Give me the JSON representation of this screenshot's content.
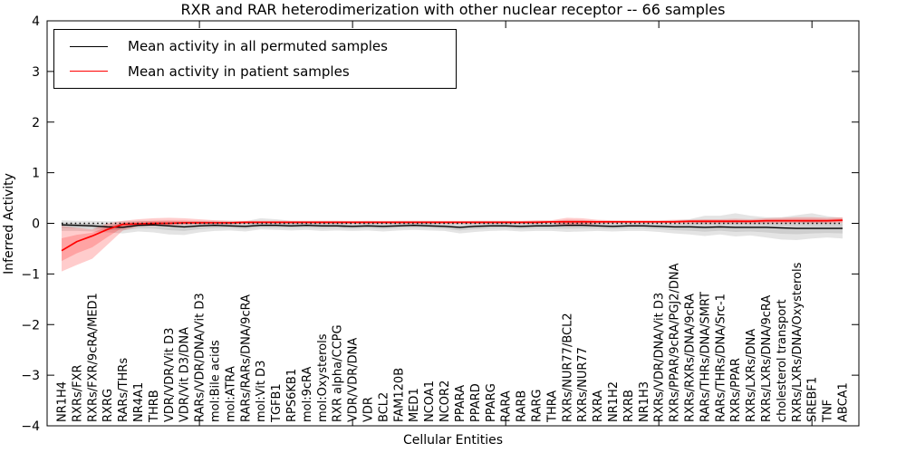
{
  "figure": {
    "title": "RXR and RAR heterodimerization with other nuclear receptor -- 66 samples",
    "xlabel": "Cellular Entities",
    "ylabel": "Inferred Activity"
  },
  "legend": {
    "entries": [
      {
        "label": "Mean activity in all permuted samples",
        "color": "#000000"
      },
      {
        "label": "Mean activity in patient samples",
        "color": "#ff0000"
      }
    ]
  },
  "chart_data": {
    "type": "line",
    "title": "RXR and RAR heterodimerization with other nuclear receptor -- 66 samples",
    "xlabel": "Cellular Entities",
    "ylabel": "Inferred Activity",
    "ylim": [
      -4,
      4
    ],
    "yticks": [
      4,
      3,
      2,
      1,
      0,
      -1,
      -2,
      -3,
      -4
    ],
    "x_major_tick_every": 10,
    "grid": false,
    "legend_position": "upper left",
    "zero_reference_line": {
      "y": 0,
      "style": "dotted",
      "color": "#000000"
    },
    "categories": [
      "NR1H4",
      "RXRs/FXR",
      "RXRs/FXR/9cRA/MED1",
      "RXRG",
      "RARs/THRs",
      "NR4A1",
      "THRB",
      "VDR/VDR/Vit D3",
      "VDR/Vit D3/DNA",
      "RARs/VDR/DNA/Vit D3",
      "mol:Bile acids",
      "mol:ATRA",
      "RARs/RARs/DNA/9cRA",
      "mol:Vit D3",
      "TGFB1",
      "RPS6KB1",
      "mol:9cRA",
      "mol:Oxysterols",
      "RXR alpha/CCPG",
      "VDR/VDR/DNA",
      "VDR",
      "BCL2",
      "FAM120B",
      "MED1",
      "NCOA1",
      "NCOR2",
      "PPARA",
      "PPARD",
      "PPARG",
      "RARA",
      "RARB",
      "RARG",
      "THRA",
      "RXRs/NUR77/BCL2",
      "RXRs/NUR77",
      "RXRA",
      "NR1H2",
      "RXRB",
      "NR1H3",
      "RXRs/VDR/DNA/Vit D3",
      "RXRs/PPAR/9cRA/PGJ2/DNA",
      "RXRs/RXRs/DNA/9cRA",
      "RARs/THRs/DNA/SMRT",
      "RARs/THRs/DNA/Src-1",
      "RXRs/PPAR",
      "RXRs/LXRs/DNA",
      "RXRs/LXRs/DNA/9cRA",
      "cholesterol transport",
      "RXRs/LXRs/DNA/Oxysterols",
      "SREBF1",
      "TNF",
      "ABCA1"
    ],
    "series": [
      {
        "name": "Mean activity in all permuted samples",
        "color": "#000000",
        "band_color": "rgba(130,130,130,0.22)",
        "values": [
          -0.03,
          -0.04,
          -0.05,
          -0.07,
          -0.08,
          -0.04,
          -0.03,
          -0.05,
          -0.07,
          -0.05,
          -0.04,
          -0.05,
          -0.06,
          -0.04,
          -0.04,
          -0.05,
          -0.04,
          -0.05,
          -0.05,
          -0.06,
          -0.05,
          -0.06,
          -0.05,
          -0.04,
          -0.05,
          -0.06,
          -0.08,
          -0.06,
          -0.05,
          -0.05,
          -0.06,
          -0.05,
          -0.05,
          -0.04,
          -0.04,
          -0.05,
          -0.06,
          -0.05,
          -0.05,
          -0.06,
          -0.07,
          -0.07,
          -0.08,
          -0.07,
          -0.08,
          -0.08,
          -0.08,
          -0.09,
          -0.1,
          -0.1,
          -0.1,
          -0.1
        ],
        "band_lo": [
          -0.15,
          -0.15,
          -0.16,
          -0.18,
          -0.2,
          -0.16,
          -0.18,
          -0.22,
          -0.23,
          -0.18,
          -0.15,
          -0.14,
          -0.16,
          -0.12,
          -0.13,
          -0.14,
          -0.13,
          -0.15,
          -0.14,
          -0.15,
          -0.14,
          -0.16,
          -0.14,
          -0.13,
          -0.14,
          -0.15,
          -0.2,
          -0.17,
          -0.15,
          -0.14,
          -0.16,
          -0.15,
          -0.15,
          -0.17,
          -0.16,
          -0.15,
          -0.16,
          -0.15,
          -0.15,
          -0.17,
          -0.2,
          -0.22,
          -0.25,
          -0.22,
          -0.26,
          -0.24,
          -0.28,
          -0.32,
          -0.33,
          -0.3,
          -0.28,
          -0.3
        ],
        "band_hi": [
          0.06,
          0.05,
          0.05,
          0.04,
          0.04,
          0.05,
          0.05,
          0.05,
          0.04,
          0.05,
          0.05,
          0.05,
          0.04,
          0.1,
          0.08,
          0.05,
          0.05,
          0.05,
          0.05,
          0.04,
          0.05,
          0.04,
          0.05,
          0.05,
          0.05,
          0.04,
          0.04,
          0.05,
          0.05,
          0.05,
          0.04,
          0.05,
          0.05,
          0.06,
          0.06,
          0.05,
          0.05,
          0.05,
          0.05,
          0.05,
          0.06,
          0.08,
          0.15,
          0.15,
          0.2,
          0.15,
          0.12,
          0.12,
          0.16,
          0.2,
          0.14,
          0.11
        ]
      },
      {
        "name": "Mean activity in patient samples",
        "color": "#ff0000",
        "band_color": "rgba(255,0,0,0.20)",
        "values": [
          -0.54,
          -0.36,
          -0.25,
          -0.12,
          -0.02,
          -0.01,
          0.0,
          0.0,
          0.01,
          0.01,
          0.01,
          0.01,
          0.02,
          0.02,
          0.02,
          0.02,
          0.02,
          0.02,
          0.02,
          0.02,
          0.02,
          0.02,
          0.02,
          0.02,
          0.02,
          0.02,
          0.02,
          0.02,
          0.02,
          0.02,
          0.02,
          0.02,
          0.03,
          0.03,
          0.03,
          0.03,
          0.03,
          0.03,
          0.03,
          0.03,
          0.03,
          0.04,
          0.04,
          0.04,
          0.04,
          0.04,
          0.05,
          0.05,
          0.05,
          0.05,
          0.05,
          0.06
        ],
        "band_lo": [
          -0.95,
          -0.82,
          -0.7,
          -0.42,
          -0.14,
          -0.06,
          -0.05,
          -0.04,
          -0.03,
          -0.02,
          -0.02,
          -0.02,
          -0.01,
          -0.01,
          -0.01,
          -0.01,
          -0.01,
          -0.01,
          -0.01,
          -0.01,
          -0.01,
          -0.01,
          -0.01,
          -0.01,
          -0.01,
          -0.01,
          -0.01,
          -0.01,
          -0.01,
          -0.01,
          -0.01,
          -0.01,
          0.0,
          -0.06,
          -0.05,
          -0.01,
          0.0,
          0.0,
          0.0,
          0.0,
          0.0,
          0.0,
          0.0,
          0.0,
          0.0,
          0.0,
          0.0,
          0.0,
          0.01,
          0.0,
          0.0,
          0.01
        ],
        "band_hi": [
          -0.05,
          -0.09,
          -0.12,
          0.0,
          0.05,
          0.08,
          0.1,
          0.11,
          0.1,
          0.08,
          0.06,
          0.05,
          0.05,
          0.05,
          0.05,
          0.05,
          0.05,
          0.05,
          0.05,
          0.05,
          0.05,
          0.05,
          0.05,
          0.05,
          0.05,
          0.05,
          0.05,
          0.05,
          0.05,
          0.05,
          0.05,
          0.06,
          0.06,
          0.11,
          0.1,
          0.07,
          0.06,
          0.06,
          0.06,
          0.06,
          0.07,
          0.07,
          0.08,
          0.08,
          0.09,
          0.08,
          0.1,
          0.11,
          0.12,
          0.12,
          0.11,
          0.12
        ]
      }
    ]
  }
}
